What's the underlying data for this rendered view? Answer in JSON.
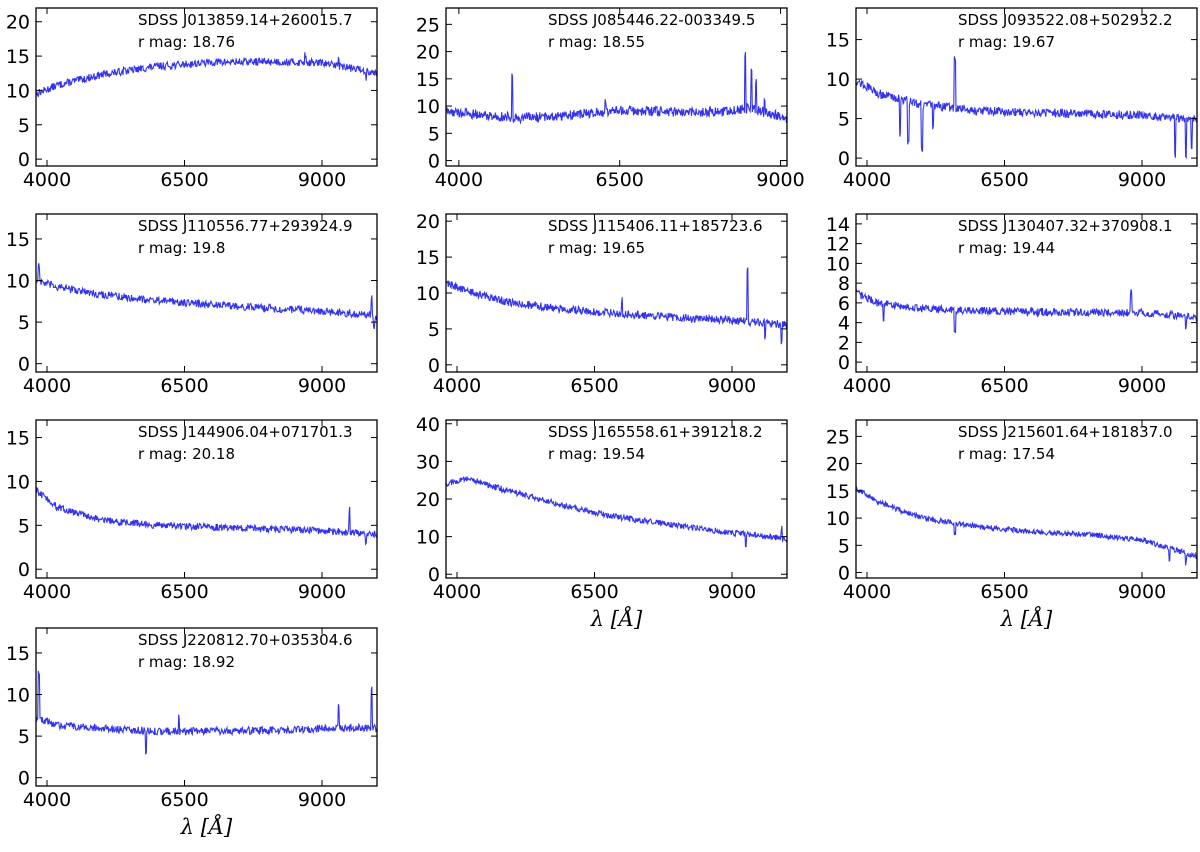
{
  "figure": {
    "line_color": "#3333ee",
    "xlabel": "λ [Å]"
  },
  "chart_data": [
    {
      "type": "line",
      "name": "SDSS J013859.14+260015.7",
      "mag": "r mag: 18.76",
      "xlim": [
        3800,
        10000
      ],
      "ylim": [
        -1,
        22
      ],
      "xticks": [
        4000,
        6500,
        9000
      ],
      "yticks": [
        0,
        5,
        10,
        15,
        20
      ],
      "xlabel": "",
      "spectrum": {
        "points": [
          [
            3800,
            9.5
          ],
          [
            4200,
            10.8
          ],
          [
            5000,
            12.3
          ],
          [
            6000,
            13.5
          ],
          [
            7000,
            14.1
          ],
          [
            8000,
            14.2
          ],
          [
            9000,
            14.0
          ],
          [
            10000,
            12.6
          ]
        ],
        "noise": 0.55,
        "spikes": [
          [
            5400,
            0.9
          ],
          [
            8700,
            1.2
          ],
          [
            9300,
            1.6
          ],
          [
            9800,
            -1.0
          ]
        ]
      }
    },
    {
      "type": "line",
      "name": "SDSS J085446.22-003349.5",
      "mag": "r mag: 18.55",
      "xlim": [
        3800,
        9100
      ],
      "ylim": [
        -1,
        28
      ],
      "xticks": [
        4000,
        6500,
        9000
      ],
      "yticks": [
        0,
        5,
        10,
        15,
        20,
        25
      ],
      "xlabel": "",
      "spectrum": {
        "points": [
          [
            3800,
            9.0
          ],
          [
            4500,
            8.2
          ],
          [
            5000,
            7.8
          ],
          [
            6000,
            8.6
          ],
          [
            6500,
            9.2
          ],
          [
            7500,
            8.9
          ],
          [
            8200,
            9.0
          ],
          [
            8500,
            9.6
          ],
          [
            9100,
            7.8
          ]
        ],
        "noise": 0.9,
        "spikes": [
          [
            4830,
            8.0
          ],
          [
            6280,
            2.5
          ],
          [
            8450,
            10.5
          ],
          [
            8550,
            7.0
          ],
          [
            8620,
            5.0
          ],
          [
            8750,
            2.0
          ]
        ]
      }
    },
    {
      "type": "line",
      "name": "SDSS J093522.08+502932.2",
      "mag": "r mag: 19.67",
      "xlim": [
        3800,
        10000
      ],
      "ylim": [
        -1,
        19
      ],
      "xticks": [
        4000,
        6500,
        9000
      ],
      "yticks": [
        0,
        5,
        10,
        15
      ],
      "xlabel": "",
      "spectrum": {
        "points": [
          [
            3800,
            9.8
          ],
          [
            4200,
            8.2
          ],
          [
            5000,
            6.8
          ],
          [
            6000,
            6.0
          ],
          [
            7000,
            5.8
          ],
          [
            8000,
            5.6
          ],
          [
            9000,
            5.4
          ],
          [
            10000,
            5.0
          ]
        ],
        "noise": 0.55,
        "spikes": [
          [
            4600,
            -4.5
          ],
          [
            4750,
            -5.0
          ],
          [
            5000,
            -5.5
          ],
          [
            5200,
            -3.0
          ],
          [
            5600,
            6.5
          ],
          [
            9600,
            -5.0
          ],
          [
            9800,
            -4.5
          ],
          [
            9900,
            -3.5
          ]
        ]
      }
    },
    {
      "type": "line",
      "name": "SDSS J110556.77+293924.9",
      "mag": "r mag: 19.8",
      "xlim": [
        3800,
        10000
      ],
      "ylim": [
        -1,
        18
      ],
      "xticks": [
        4000,
        6500,
        9000
      ],
      "yticks": [
        0,
        5,
        10,
        15
      ],
      "xlabel": "",
      "spectrum": {
        "points": [
          [
            3800,
            10.0
          ],
          [
            4200,
            9.2
          ],
          [
            5000,
            8.3
          ],
          [
            6000,
            7.6
          ],
          [
            7000,
            7.1
          ],
          [
            8000,
            6.7
          ],
          [
            9000,
            6.3
          ],
          [
            10000,
            5.8
          ]
        ],
        "noise": 0.45,
        "spikes": [
          [
            3850,
            2.0
          ],
          [
            9900,
            2.0
          ],
          [
            9950,
            -1.5
          ]
        ]
      }
    },
    {
      "type": "line",
      "name": "SDSS J115406.11+185723.6",
      "mag": "r mag: 19.65",
      "xlim": [
        3800,
        10000
      ],
      "ylim": [
        -1,
        21
      ],
      "xticks": [
        4000,
        6500,
        9000
      ],
      "yticks": [
        0,
        5,
        10,
        15,
        20
      ],
      "xlabel": "",
      "spectrum": {
        "points": [
          [
            3800,
            11.5
          ],
          [
            4200,
            10.2
          ],
          [
            5000,
            8.6
          ],
          [
            6000,
            7.7
          ],
          [
            7000,
            7.1
          ],
          [
            8000,
            6.6
          ],
          [
            9000,
            6.2
          ],
          [
            10000,
            5.6
          ]
        ],
        "noise": 0.55,
        "spikes": [
          [
            7000,
            2.0
          ],
          [
            9280,
            7.5
          ],
          [
            9600,
            -2.0
          ],
          [
            9900,
            -2.5
          ]
        ]
      }
    },
    {
      "type": "line",
      "name": "SDSS J130407.32+370908.1",
      "mag": "r mag: 19.44",
      "xlim": [
        3800,
        10000
      ],
      "ylim": [
        -1,
        15
      ],
      "xticks": [
        4000,
        6500,
        9000
      ],
      "yticks": [
        0,
        2,
        4,
        6,
        8,
        10,
        12,
        14
      ],
      "xlabel": "",
      "spectrum": {
        "points": [
          [
            3800,
            7.0
          ],
          [
            4200,
            6.0
          ],
          [
            5000,
            5.4
          ],
          [
            6000,
            5.2
          ],
          [
            7000,
            5.1
          ],
          [
            8000,
            5.0
          ],
          [
            9000,
            5.0
          ],
          [
            10000,
            4.6
          ]
        ],
        "noise": 0.4,
        "spikes": [
          [
            4300,
            -1.5
          ],
          [
            5600,
            -2.5
          ],
          [
            8800,
            2.0
          ],
          [
            9800,
            -1.5
          ]
        ]
      }
    },
    {
      "type": "line",
      "name": "SDSS J144906.04+071701.3",
      "mag": "r mag: 20.18",
      "xlim": [
        3800,
        10000
      ],
      "ylim": [
        -1,
        17
      ],
      "xticks": [
        4000,
        6500,
        9000
      ],
      "yticks": [
        0,
        5,
        10,
        15
      ],
      "xlabel": "",
      "spectrum": {
        "points": [
          [
            3800,
            9.0
          ],
          [
            4200,
            7.0
          ],
          [
            5000,
            5.6
          ],
          [
            6000,
            5.0
          ],
          [
            7000,
            4.8
          ],
          [
            8000,
            4.6
          ],
          [
            9000,
            4.4
          ],
          [
            10000,
            4.0
          ]
        ],
        "noise": 0.4,
        "spikes": [
          [
            9500,
            2.5
          ],
          [
            9800,
            -1.5
          ]
        ]
      }
    },
    {
      "type": "line",
      "name": "SDSS J165558.61+391218.2",
      "mag": "r mag: 19.54",
      "xlim": [
        3800,
        10000
      ],
      "ylim": [
        -1,
        41
      ],
      "xticks": [
        4000,
        6500,
        9000
      ],
      "yticks": [
        0,
        10,
        20,
        30,
        40
      ],
      "xlabel": "λ [Å]",
      "spectrum": {
        "points": [
          [
            3800,
            24.0
          ],
          [
            4200,
            25.5
          ],
          [
            4500,
            24.0
          ],
          [
            5000,
            22.0
          ],
          [
            6000,
            18.0
          ],
          [
            7000,
            15.0
          ],
          [
            8000,
            13.0
          ],
          [
            9000,
            11.0
          ],
          [
            10000,
            9.5
          ]
        ],
        "noise": 0.8,
        "spikes": [
          [
            9250,
            -3.5
          ],
          [
            9900,
            2.5
          ]
        ]
      }
    },
    {
      "type": "line",
      "name": "SDSS J215601.64+181837.0",
      "mag": "r mag: 17.54",
      "xlim": [
        3800,
        10000
      ],
      "ylim": [
        -1,
        28
      ],
      "xticks": [
        4000,
        6500,
        9000
      ],
      "yticks": [
        0,
        5,
        10,
        15,
        20,
        25
      ],
      "xlabel": "λ [Å]",
      "spectrum": {
        "points": [
          [
            3800,
            15.5
          ],
          [
            4200,
            13.0
          ],
          [
            5000,
            10.0
          ],
          [
            6000,
            8.5
          ],
          [
            7000,
            7.5
          ],
          [
            8000,
            7.0
          ],
          [
            9000,
            6.0
          ],
          [
            10000,
            3.0
          ]
        ],
        "noise": 0.5,
        "spikes": [
          [
            5600,
            -2.0
          ],
          [
            9500,
            -2.5
          ],
          [
            9800,
            -2.0
          ]
        ]
      }
    },
    {
      "type": "line",
      "name": "SDSS J220812.70+035304.6",
      "mag": "r mag: 18.92",
      "xlim": [
        3800,
        10000
      ],
      "ylim": [
        -1,
        18
      ],
      "xticks": [
        4000,
        6500,
        9000
      ],
      "yticks": [
        0,
        5,
        10,
        15
      ],
      "xlabel": "λ [Å]",
      "spectrum": {
        "points": [
          [
            3800,
            7.2
          ],
          [
            4200,
            6.3
          ],
          [
            5000,
            5.9
          ],
          [
            6000,
            5.6
          ],
          [
            7000,
            5.6
          ],
          [
            8000,
            5.7
          ],
          [
            9000,
            5.9
          ],
          [
            10000,
            6.0
          ]
        ],
        "noise": 0.45,
        "spikes": [
          [
            5800,
            -2.5
          ],
          [
            6400,
            1.8
          ],
          [
            9300,
            2.5
          ],
          [
            9900,
            5.0
          ],
          [
            3850,
            5.5
          ]
        ]
      }
    }
  ]
}
